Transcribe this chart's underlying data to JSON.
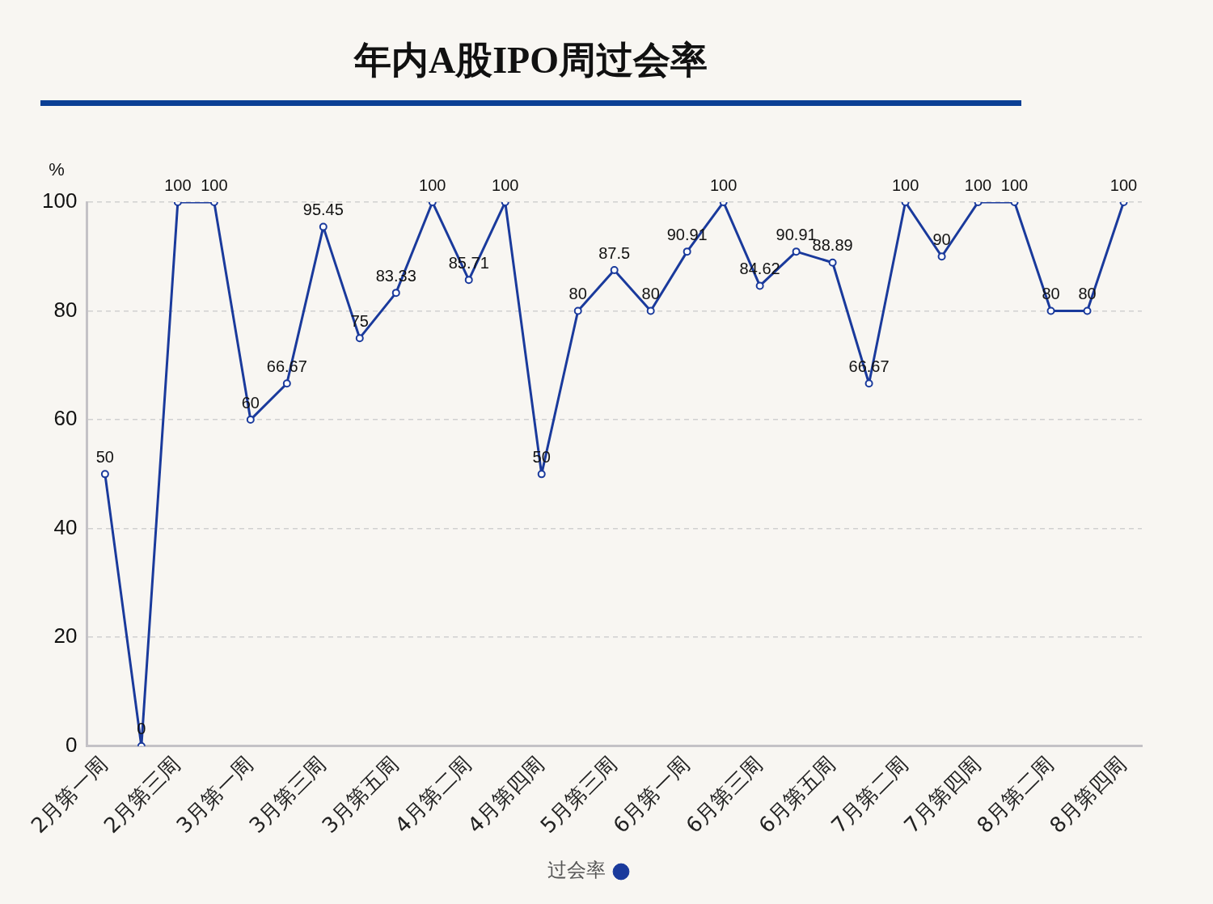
{
  "chart_data": {
    "type": "line",
    "title": "年内A股IPO周过会率",
    "ylabel": "%",
    "categories": [
      "2月第一周",
      null,
      "2月第三周",
      null,
      "3月第一周",
      null,
      "3月第三周",
      null,
      "3月第五周",
      null,
      "4月第二周",
      null,
      "4月第四周",
      null,
      "5月第三周",
      null,
      "6月第一周",
      null,
      "6月第三周",
      null,
      "6月第五周",
      null,
      "7月第二周",
      null,
      "7月第四周",
      null,
      "8月第二周",
      null,
      "8月第四周"
    ],
    "series": [
      {
        "name": "过会率",
        "color": "#1a3a9c",
        "values": [
          50,
          0,
          100,
          100,
          60,
          66.67,
          95.45,
          75,
          83.33,
          100,
          85.71,
          100,
          50,
          80,
          87.5,
          80,
          90.91,
          100,
          84.62,
          90.91,
          88.89,
          66.67,
          100,
          90,
          100,
          100,
          80,
          80,
          100
        ]
      }
    ],
    "ylim": [
      0,
      100
    ],
    "yticks": [
      0,
      20,
      40,
      60,
      80,
      100
    ],
    "grid": "y",
    "legend": "bottom",
    "marker": "circle",
    "line_style": "solid",
    "data_labels": true
  }
}
